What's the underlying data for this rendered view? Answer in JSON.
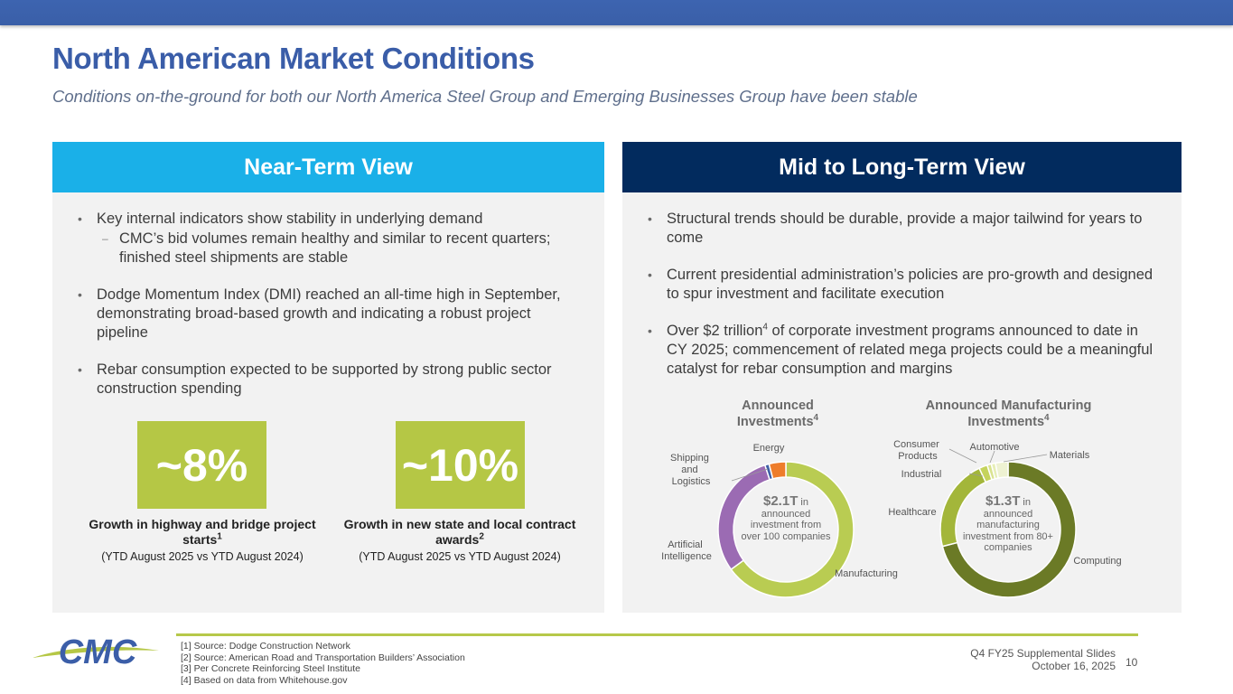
{
  "title": "North American Market Conditions",
  "subtitle": "Conditions on-the-ground for both our North America Steel Group and Emerging Businesses Group have been stable",
  "near_term": {
    "heading": "Near-Term View",
    "b1": "Key internal indicators show stability in underlying demand",
    "b1_sub": "CMC’s bid volumes remain healthy and similar to recent quarters; finished steel shipments are stable",
    "b2": "Dodge Momentum Index (DMI) reached an all-time high in September, demonstrating broad-based growth and indicating a robust project pipeline",
    "b3": "Rebar consumption expected to be supported by strong public sector construction spending",
    "stat1": {
      "value": "~8%",
      "caption_pre": "Growth in highway and bridge project starts",
      "caption_sup": "1",
      "note": "(YTD August 2025 vs YTD August 2024)"
    },
    "stat2": {
      "value": "~10%",
      "caption_pre": "Growth in new state and local contract awards",
      "caption_sup": "2",
      "note": "(YTD August 2025 vs YTD August 2024)"
    }
  },
  "mid_long": {
    "heading": "Mid to Long-Term View",
    "b1": "Structural trends should be durable, provide a major tailwind for years to come",
    "b2": "Current presidential administration’s policies are pro-growth and designed to spur investment and facilitate execution",
    "b3_pre": "Over $2 trillion",
    "b3_sup": "4",
    "b3_post": " of corporate investment programs announced to date in CY 2025; commencement of related mega projects could be a meaningful catalyst for rebar consumption and margins"
  },
  "chart_data": [
    {
      "type": "pie",
      "title": "Announced Investments",
      "title_sup": "4",
      "center_value": "$2.1T",
      "center_text": "in announced investment from over 100 companies",
      "categories": [
        "Manufacturing",
        "Artificial Intelligence",
        "Shipping and Logistics",
        "Energy"
      ],
      "values": [
        65,
        30,
        1,
        4
      ],
      "colors": [
        "#b9cc52",
        "#9b6bb3",
        "#3e5fa5",
        "#ee7d2b"
      ]
    },
    {
      "type": "pie",
      "title": "Announced Manufacturing Investments",
      "title_sup": "4",
      "center_value": "$1.3T",
      "center_text": "in announced manufacturing investment from 80+ companies",
      "categories": [
        "Computing",
        "Healthcare",
        "Industrial",
        "Consumer Products",
        "Automotive",
        "Materials"
      ],
      "values": [
        71,
        22,
        2,
        1,
        1,
        3
      ],
      "colors": [
        "#6b7a26",
        "#a3b63a",
        "#c5d35c",
        "#d9e38f",
        "#e6eeb6",
        "#eef2d2"
      ]
    }
  ],
  "footer": {
    "sources": [
      "[1] Source: Dodge Construction Network",
      "[2] Source: American Road and Transportation Builders’ Association",
      "[3] Per Concrete Reinforcing Steel Institute",
      "[4] Based on data from Whitehouse.gov"
    ],
    "deck": "Q4 FY25 Supplemental Slides",
    "date": "October 16, 2025",
    "page": "10",
    "logo_text": "CMC"
  }
}
